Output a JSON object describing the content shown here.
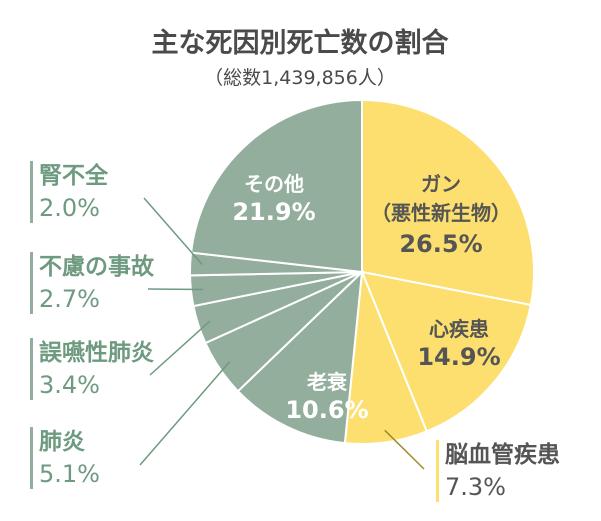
{
  "chart_data": {
    "type": "pie",
    "title": "主な死因別死亡数の割合",
    "subtitle": "（総数1,439,856人）",
    "slices": [
      {
        "label": "ガン",
        "sublabel": "（悪性新生物）",
        "value": 26.5,
        "value_label": "26.5%",
        "color": "#fcdf6f"
      },
      {
        "label": "心疾患",
        "value": 14.9,
        "value_label": "14.9%",
        "color": "#fcdf6f"
      },
      {
        "label": "脳血管疾患",
        "value": 7.3,
        "value_label": "7.3%",
        "color": "#fcdf6f"
      },
      {
        "label": "老衰",
        "value": 10.6,
        "value_label": "10.6%",
        "color": "#93ae9c"
      },
      {
        "label": "肺炎",
        "value": 5.1,
        "value_label": "5.1%",
        "color": "#93ae9c"
      },
      {
        "label": "誤嚥性肺炎",
        "value": 3.4,
        "value_label": "3.4%",
        "color": "#93ae9c"
      },
      {
        "label": "不慮の事故",
        "value": 2.7,
        "value_label": "2.7%",
        "color": "#93ae9c"
      },
      {
        "label": "腎不全",
        "value": 2.0,
        "value_label": "2.0%",
        "color": "#93ae9c"
      },
      {
        "label": "その他",
        "value": 21.9,
        "value_label": "21.9%",
        "color": "#93ae9c"
      }
    ]
  }
}
